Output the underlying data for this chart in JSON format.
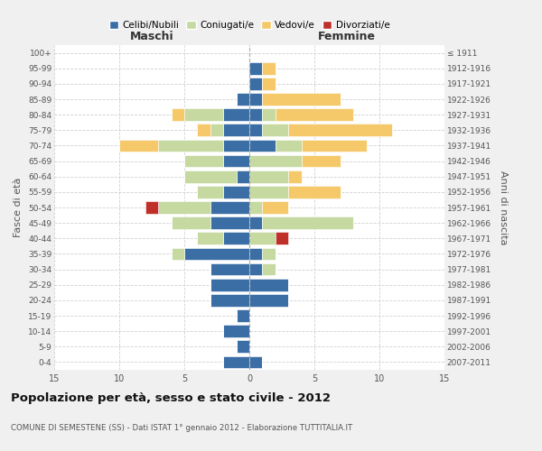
{
  "age_groups": [
    "0-4",
    "5-9",
    "10-14",
    "15-19",
    "20-24",
    "25-29",
    "30-34",
    "35-39",
    "40-44",
    "45-49",
    "50-54",
    "55-59",
    "60-64",
    "65-69",
    "70-74",
    "75-79",
    "80-84",
    "85-89",
    "90-94",
    "95-99",
    "100+"
  ],
  "birth_years": [
    "2007-2011",
    "2002-2006",
    "1997-2001",
    "1992-1996",
    "1987-1991",
    "1982-1986",
    "1977-1981",
    "1972-1976",
    "1967-1971",
    "1962-1966",
    "1957-1961",
    "1952-1956",
    "1947-1951",
    "1942-1946",
    "1937-1941",
    "1932-1936",
    "1927-1931",
    "1922-1926",
    "1917-1921",
    "1912-1916",
    "≤ 1911"
  ],
  "maschi": {
    "celibi": [
      2,
      1,
      2,
      1,
      3,
      3,
      3,
      5,
      2,
      3,
      3,
      2,
      1,
      2,
      2,
      2,
      2,
      1,
      0,
      0,
      0
    ],
    "coniugati": [
      0,
      0,
      0,
      0,
      0,
      0,
      0,
      1,
      2,
      3,
      4,
      2,
      4,
      3,
      5,
      1,
      3,
      0,
      0,
      0,
      0
    ],
    "vedovi": [
      0,
      0,
      0,
      0,
      0,
      0,
      0,
      0,
      0,
      0,
      0,
      0,
      0,
      0,
      3,
      1,
      1,
      0,
      0,
      0,
      0
    ],
    "divorziati": [
      0,
      0,
      0,
      0,
      0,
      0,
      0,
      0,
      0,
      0,
      1,
      0,
      0,
      0,
      0,
      0,
      0,
      0,
      0,
      0,
      0
    ]
  },
  "femmine": {
    "celibi": [
      1,
      0,
      0,
      0,
      3,
      3,
      1,
      1,
      0,
      1,
      0,
      0,
      0,
      0,
      2,
      1,
      1,
      1,
      1,
      1,
      0
    ],
    "coniugati": [
      0,
      0,
      0,
      0,
      0,
      0,
      1,
      1,
      2,
      7,
      1,
      3,
      3,
      4,
      2,
      2,
      1,
      0,
      0,
      0,
      0
    ],
    "vedovi": [
      0,
      0,
      0,
      0,
      0,
      0,
      0,
      0,
      0,
      0,
      2,
      4,
      1,
      3,
      5,
      8,
      6,
      6,
      1,
      1,
      0
    ],
    "divorziati": [
      0,
      0,
      0,
      0,
      0,
      0,
      0,
      0,
      1,
      0,
      0,
      0,
      0,
      0,
      0,
      0,
      0,
      0,
      0,
      0,
      0
    ]
  },
  "colors": {
    "celibi": "#3a6ea5",
    "coniugati": "#c5d9a0",
    "vedovi": "#f5c96a",
    "divorziati": "#c0302a"
  },
  "legend_labels": [
    "Celibi/Nubili",
    "Coniugati/e",
    "Vedovi/e",
    "Divorziati/e"
  ],
  "title": "Popolazione per età, sesso e stato civile - 2012",
  "subtitle": "COMUNE DI SEMESTENE (SS) - Dati ISTAT 1° gennaio 2012 - Elaborazione TUTTITALIA.IT",
  "xlabel_left": "Maschi",
  "xlabel_right": "Femmine",
  "ylabel_left": "Fasce di età",
  "ylabel_right": "Anni di nascita",
  "xlim": 15,
  "background_color": "#f0f0f0",
  "plot_bg": "#ffffff"
}
